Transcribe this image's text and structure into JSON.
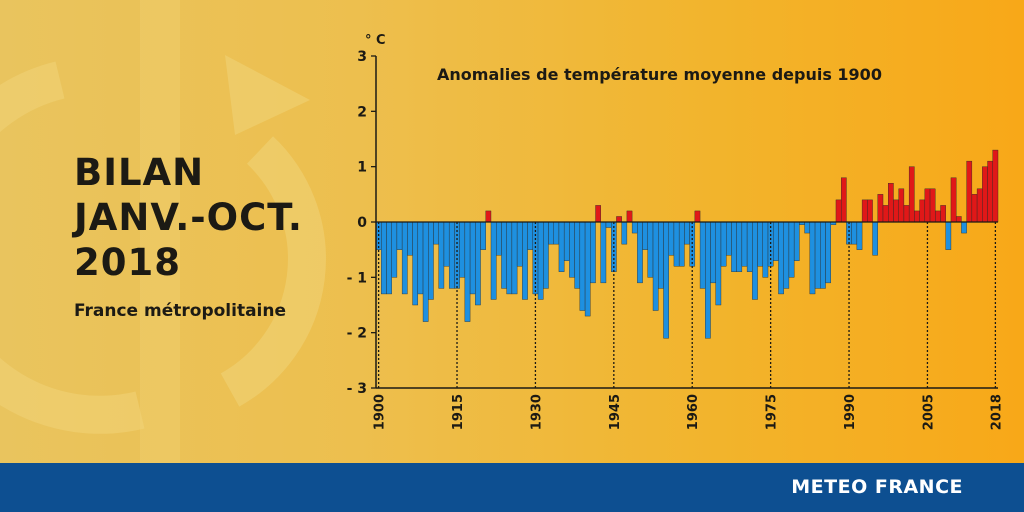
{
  "colors": {
    "positive": "#e01818",
    "negative": "#1e90e0",
    "footer": "#0d4f91"
  },
  "header": {
    "title_lines": [
      "BILAN",
      "JANV.-OCT.",
      "2018"
    ],
    "region": "France métropolitaine"
  },
  "footer": {
    "brand": "METEO FRANCE"
  },
  "chart_data": {
    "type": "bar",
    "title": "Anomalies de température moyenne depuis 1900",
    "ylabel": "° C",
    "xlabel": "",
    "ylim": [
      -3,
      3
    ],
    "yticks": [
      -3,
      -2,
      -1,
      0,
      1,
      2,
      3
    ],
    "xticks": [
      1900,
      1915,
      1930,
      1945,
      1960,
      1975,
      1990,
      2005,
      2018
    ],
    "grid": false,
    "x_start": 1900,
    "x_end": 2018,
    "values": [
      -0.5,
      -1.3,
      -1.3,
      -1.0,
      -0.5,
      -1.3,
      -0.6,
      -1.5,
      -1.3,
      -1.8,
      -1.4,
      -0.4,
      -1.2,
      -0.8,
      -1.2,
      -1.2,
      -1.0,
      -1.8,
      -1.3,
      -1.5,
      -0.5,
      0.2,
      -1.4,
      -0.6,
      -1.2,
      -1.3,
      -1.3,
      -0.8,
      -1.4,
      -0.5,
      -1.3,
      -1.4,
      -1.2,
      -0.4,
      -0.4,
      -0.9,
      -0.7,
      -1.0,
      -1.2,
      -1.6,
      -1.7,
      -1.1,
      0.3,
      -1.1,
      -0.1,
      -0.9,
      0.1,
      -0.4,
      0.2,
      -0.2,
      -1.1,
      -0.5,
      -1.0,
      -1.6,
      -1.2,
      -2.1,
      -0.6,
      -0.8,
      -0.8,
      -0.4,
      -0.8,
      0.2,
      -1.2,
      -2.1,
      -1.1,
      -1.5,
      -0.8,
      -0.6,
      -0.9,
      -0.9,
      -0.8,
      -0.9,
      -1.4,
      -0.8,
      -1.0,
      -0.8,
      -0.7,
      -1.3,
      -1.2,
      -1.0,
      -0.7,
      -0.05,
      -0.2,
      -1.3,
      -1.2,
      -1.2,
      -1.1,
      -0.05,
      0.4,
      0.8,
      -0.4,
      -0.4,
      -0.5,
      0.4,
      0.4,
      -0.6,
      0.5,
      0.3,
      0.7,
      0.4,
      0.6,
      0.3,
      1.0,
      0.2,
      0.4,
      0.6,
      0.6,
      0.2,
      0.3,
      -0.5,
      0.8,
      0.1,
      -0.2,
      1.1,
      0.5,
      0.6,
      1.0,
      1.1,
      1.3
    ]
  }
}
